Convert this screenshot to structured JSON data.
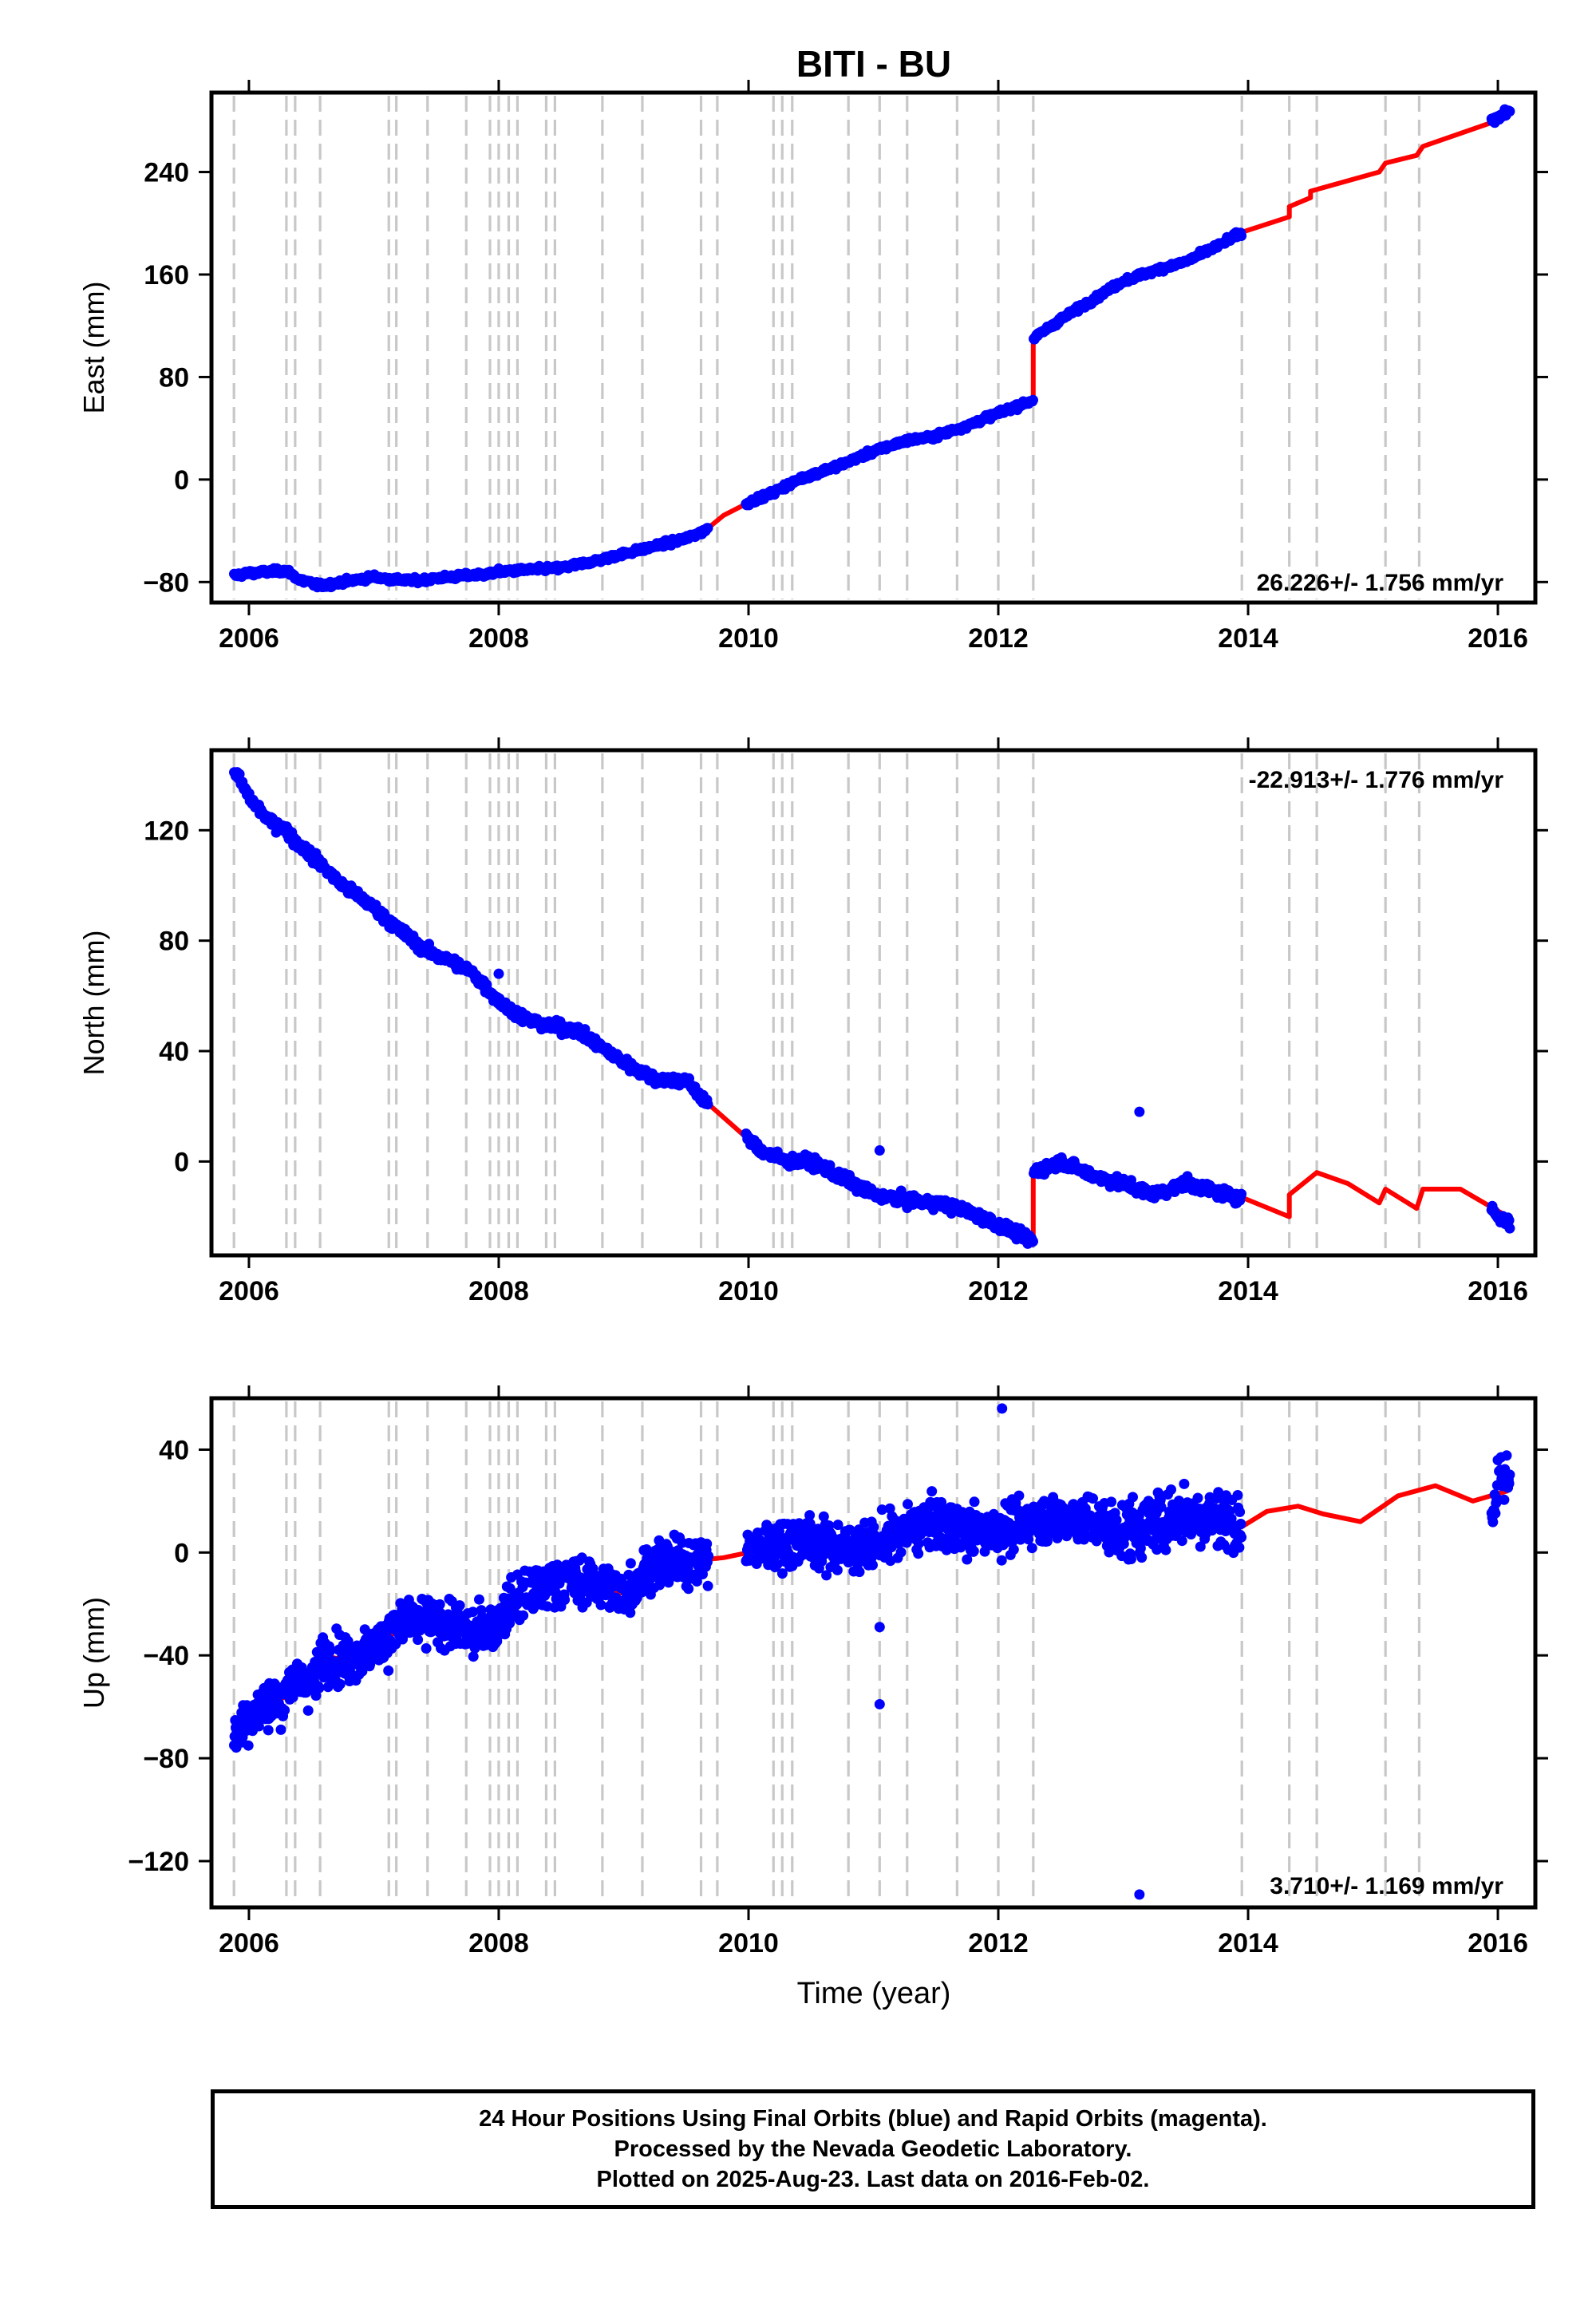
{
  "footer": {
    "line1": "24 Hour Positions Using Final Orbits (blue) and Rapid Orbits (magenta).",
    "line2": "Processed by the Nevada Geodetic Laboratory.",
    "line3": "Plotted on 2025-Aug-23. Last data on 2016-Feb-02."
  },
  "chart_data": [
    {
      "type": "scatter",
      "title": "BITI - BU",
      "ylabel": "East (mm)",
      "xlabel": "",
      "rate_label": "26.226+/- 1.756 mm/yr",
      "xlim": [
        2005.7,
        2016.3
      ],
      "ylim": [
        -96,
        302
      ],
      "xticks": [
        2006,
        2008,
        2010,
        2012,
        2014,
        2016
      ],
      "yticks": [
        -80,
        0,
        80,
        160,
        240
      ],
      "colors": {
        "points": "#0000ff",
        "model": "#ff0000",
        "events": "#c8c8c8"
      },
      "series": [
        {
          "values_x": [
            2005.88,
            2006.0,
            2006.3,
            2006.4,
            2006.57,
            2006.75,
            2007.0,
            2007.15,
            2007.33,
            2007.5,
            2007.75,
            2007.9,
            2008.0,
            2008.3,
            2008.5,
            2008.75,
            2009.0,
            2009.25,
            2009.5,
            2009.65,
            2009.8,
            2010.0,
            2010.2,
            2010.4,
            2010.75,
            2011.0,
            2011.25,
            2011.5,
            2011.75,
            2012.0,
            2012.28,
            2012.28,
            2012.5,
            2012.75,
            2013.0,
            2013.25,
            2013.5,
            2013.75,
            2013.95
          ]
        },
        {
          "values_y": [
            -75,
            -73,
            -71,
            -78,
            -83,
            -80,
            -76,
            -78,
            -79,
            -77,
            -75,
            -74,
            -72,
            -70,
            -69,
            -64,
            -58,
            -52,
            -46,
            -40,
            -28,
            -18,
            -10,
            0,
            12,
            22,
            30,
            34,
            42,
            52,
            62,
            110,
            125,
            140,
            155,
            163,
            170,
            182,
            193
          ]
        }
      ],
      "model_extension": {
        "x": [
          2013.95,
          2014.33,
          2014.33,
          2014.5,
          2014.5,
          2015.05,
          2015.1,
          2015.35,
          2015.4,
          2016.08
        ],
        "y": [
          193,
          205,
          213,
          220,
          225,
          240,
          247,
          253,
          260,
          283
        ]
      },
      "final_data": {
        "x": [
          2015.95,
          2016.0,
          2016.05,
          2016.1
        ],
        "y": [
          280,
          283,
          285,
          288
        ]
      },
      "events": [
        2005.88,
        2006.3,
        2006.37,
        2006.57,
        2007.12,
        2007.18,
        2007.43,
        2007.74,
        2007.93,
        2008.0,
        2008.08,
        2008.15,
        2008.38,
        2008.45,
        2008.83,
        2009.15,
        2009.62,
        2009.75,
        2010.2,
        2010.27,
        2010.35,
        2010.8,
        2011.05,
        2011.27,
        2011.67,
        2012.0,
        2012.28,
        2013.95,
        2014.33,
        2014.55,
        2015.1,
        2015.37
      ]
    },
    {
      "type": "scatter",
      "title": "",
      "ylabel": "North (mm)",
      "xlabel": "",
      "rate_label": "-22.913+/- 1.776 mm/yr",
      "xlim": [
        2005.7,
        2016.3
      ],
      "ylim": [
        -34,
        149
      ],
      "xticks": [
        2006,
        2008,
        2010,
        2012,
        2014,
        2016
      ],
      "yticks": [
        0,
        40,
        80,
        120
      ],
      "colors": {
        "points": "#0000ff",
        "model": "#ff0000",
        "events": "#c8c8c8"
      },
      "series": [
        {
          "values_x": [
            2005.88,
            2006.0,
            2006.15,
            2006.3,
            2006.37,
            2006.57,
            2006.75,
            2007.0,
            2007.2,
            2007.43,
            2007.6,
            2007.8,
            2008.0,
            2008.2,
            2008.4,
            2008.6,
            2008.8,
            2009.0,
            2009.25,
            2009.5,
            2009.7,
            2009.9,
            2010.1,
            2010.3,
            2010.5,
            2010.75,
            2011.0,
            2011.25,
            2011.5,
            2011.75,
            2012.0,
            2012.28,
            2012.28,
            2012.5,
            2012.75,
            2013.0,
            2013.25,
            2013.5,
            2013.75,
            2013.95
          ]
        },
        {
          "values_y": [
            142,
            132,
            124,
            120,
            116,
            108,
            100,
            92,
            84,
            76,
            73,
            68,
            58,
            52,
            49,
            48,
            42,
            36,
            30,
            29,
            20,
            12,
            4,
            0,
            0,
            -6,
            -12,
            -14,
            -15,
            -18,
            -23,
            -29,
            -4,
            0,
            -5,
            -8,
            -12,
            -8,
            -11,
            -13
          ]
        }
      ],
      "model_extension": {
        "x": [
          2013.95,
          2014.33,
          2014.33,
          2014.55,
          2014.8,
          2015.05,
          2015.1,
          2015.35,
          2015.4,
          2015.7,
          2016.08
        ],
        "y": [
          -13,
          -20,
          -12,
          -4,
          -8,
          -15,
          -10,
          -17,
          -10,
          -10,
          -20
        ]
      },
      "final_data": {
        "x": [
          2015.95,
          2016.0,
          2016.05,
          2016.1
        ],
        "y": [
          -17,
          -20,
          -21,
          -22
        ]
      },
      "outliers": {
        "x": [
          2008.0,
          2011.05,
          2013.13
        ],
        "y": [
          68,
          4,
          18
        ]
      },
      "events": [
        2005.88,
        2006.3,
        2006.37,
        2006.57,
        2007.12,
        2007.18,
        2007.43,
        2007.74,
        2007.93,
        2008.0,
        2008.08,
        2008.15,
        2008.38,
        2008.45,
        2008.83,
        2009.15,
        2009.62,
        2009.75,
        2010.2,
        2010.27,
        2010.35,
        2010.8,
        2011.05,
        2011.27,
        2011.67,
        2012.0,
        2012.28,
        2013.95,
        2014.33,
        2014.55,
        2015.1,
        2015.37
      ]
    },
    {
      "type": "scatter",
      "title": "",
      "ylabel": "Up (mm)",
      "xlabel": "Time (year)",
      "rate_label": "3.710+/- 1.169 mm/yr",
      "xlim": [
        2005.7,
        2016.3
      ],
      "ylim": [
        -138,
        60
      ],
      "xticks": [
        2006,
        2008,
        2010,
        2012,
        2014,
        2016
      ],
      "yticks": [
        -120,
        -80,
        -40,
        0,
        40
      ],
      "colors": {
        "points": "#0000ff",
        "model": "#ff0000",
        "events": "#c8c8c8"
      },
      "series": [
        {
          "values_x": [
            2005.88,
            2006.0,
            2006.2,
            2006.3,
            2006.3,
            2006.45,
            2006.57,
            2006.57,
            2006.8,
            2007.0,
            2007.2,
            2007.4,
            2007.6,
            2007.8,
            2008.0,
            2008.1,
            2008.3,
            2008.5,
            2008.75,
            2009.0,
            2009.2,
            2009.4,
            2009.6,
            2009.8,
            2010.0,
            2010.2,
            2010.4,
            2010.6,
            2010.8,
            2011.0,
            2011.25,
            2011.5,
            2011.75,
            2012.0,
            2012.25,
            2012.5,
            2012.75,
            2013.0,
            2013.25,
            2013.5,
            2013.75,
            2013.95
          ]
        },
        {
          "values_y": [
            -72,
            -64,
            -58,
            -56,
            -50,
            -50,
            -48,
            -40,
            -42,
            -37,
            -30,
            -26,
            -28,
            -32,
            -27,
            -20,
            -15,
            -10,
            -12,
            -16,
            -6,
            -4,
            -3,
            -2,
            0,
            3,
            5,
            3,
            2,
            3,
            8,
            12,
            8,
            9,
            12,
            14,
            12,
            8,
            12,
            15,
            14,
            10
          ]
        }
      ],
      "model_extension": {
        "x": [
          2013.95,
          2014.15,
          2014.4,
          2014.6,
          2014.9,
          2015.2,
          2015.5,
          2015.8,
          2016.08
        ],
        "y": [
          10,
          16,
          18,
          15,
          12,
          22,
          26,
          20,
          24
        ]
      },
      "final_data": {
        "x": [
          2015.95,
          2016.0,
          2016.05,
          2016.1
        ],
        "y": [
          15,
          25,
          28,
          30
        ]
      },
      "outliers": {
        "x": [
          2011.05,
          2012.03,
          2011.05,
          2013.13
        ],
        "y": [
          -29,
          56,
          -59,
          -133
        ]
      },
      "events": [
        2005.88,
        2006.3,
        2006.37,
        2006.57,
        2007.12,
        2007.18,
        2007.43,
        2007.74,
        2007.93,
        2008.0,
        2008.08,
        2008.15,
        2008.38,
        2008.45,
        2008.83,
        2009.15,
        2009.62,
        2009.75,
        2010.2,
        2010.27,
        2010.35,
        2010.8,
        2011.05,
        2011.27,
        2011.67,
        2012.0,
        2012.28,
        2013.95,
        2014.33,
        2014.55,
        2015.1,
        2015.37
      ]
    }
  ]
}
